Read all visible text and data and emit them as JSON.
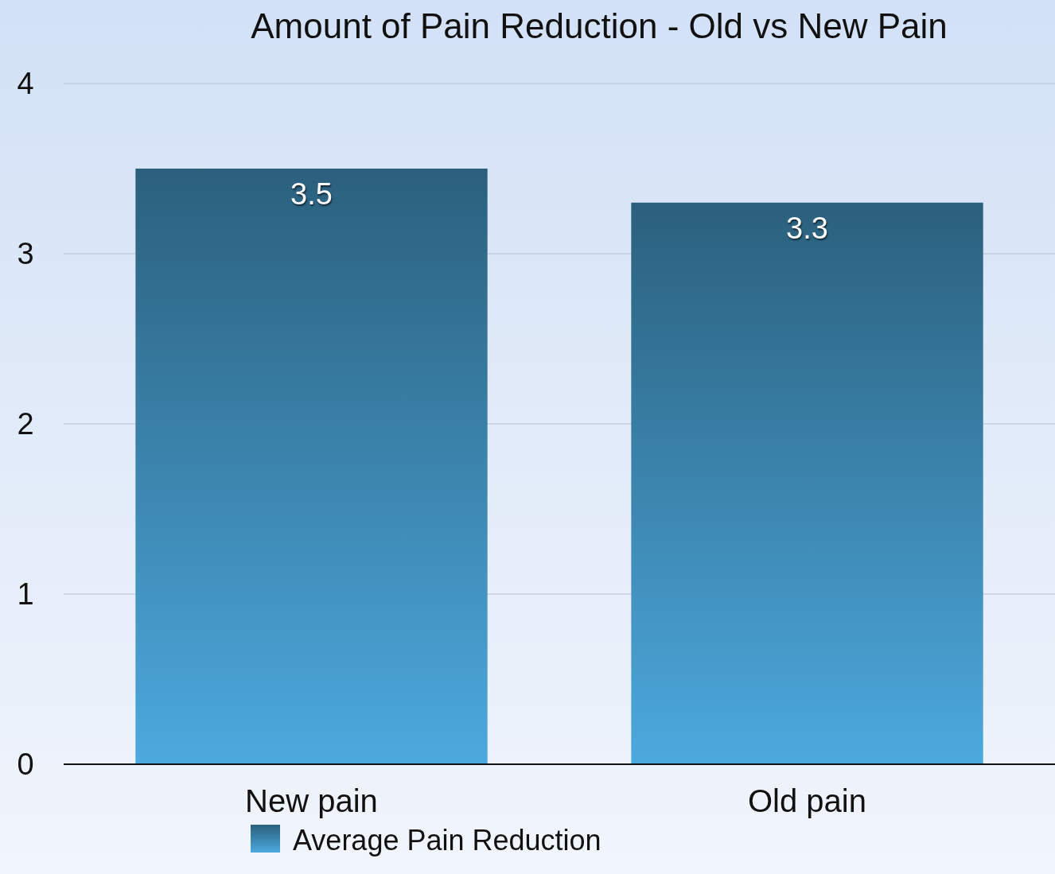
{
  "chart_data": {
    "type": "bar",
    "title": "Amount of Pain Reduction - Old vs New Pain",
    "categories": [
      "New pain",
      "Old pain"
    ],
    "series": [
      {
        "name": "Average Pain Reduction",
        "color": "#3b84ad",
        "values": [
          3.5,
          3.3
        ]
      }
    ],
    "ylim": [
      0,
      4
    ],
    "yticks": [
      0,
      1,
      2,
      3,
      4
    ],
    "grid": "y",
    "legend": "bottom",
    "data_labels": true
  }
}
